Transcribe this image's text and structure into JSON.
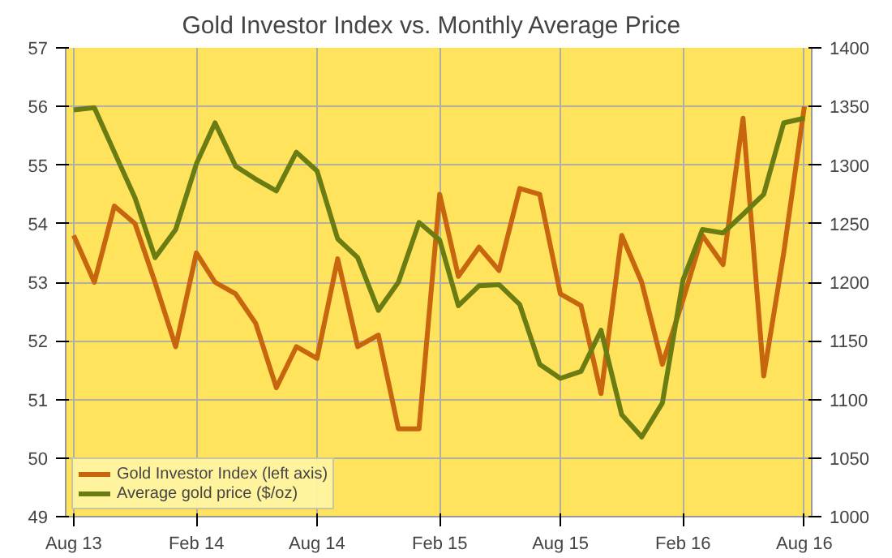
{
  "chart_data": {
    "type": "line",
    "title": "Gold Investor  Index vs. Monthly  Average Price",
    "x": [
      "2013-08",
      "2013-09",
      "2013-10",
      "2013-11",
      "2013-12",
      "2014-01",
      "2014-02",
      "2014-03",
      "2014-04",
      "2014-05",
      "2014-06",
      "2014-07",
      "2014-08",
      "2014-09",
      "2014-10",
      "2014-11",
      "2014-12",
      "2015-01",
      "2015-02",
      "2015-03",
      "2015-04",
      "2015-05",
      "2015-06",
      "2015-07",
      "2015-08",
      "2015-09",
      "2015-10",
      "2015-11",
      "2015-12",
      "2016-01",
      "2016-02",
      "2016-03",
      "2016-04",
      "2016-05",
      "2016-06",
      "2016-07",
      "2016-08"
    ],
    "series": [
      {
        "name": "Gold Investor Index (left axis)",
        "color": "#c8650f",
        "values": [
          53.8,
          53.0,
          54.3,
          54.0,
          53.0,
          51.9,
          53.5,
          53.0,
          52.8,
          52.3,
          51.2,
          51.9,
          51.7,
          53.4,
          51.9,
          52.1,
          50.5,
          50.5,
          54.5,
          53.1,
          53.6,
          53.2,
          54.6,
          54.5,
          52.8,
          52.6,
          51.1,
          53.8,
          53.0,
          51.6,
          52.7,
          53.8,
          53.3,
          55.8,
          51.4,
          53.5,
          56.0
        ]
      },
      {
        "name": "Average gold price ($/oz)",
        "color": "#6b7d12",
        "axis": "y2",
        "values": [
          1347,
          1349,
          1311,
          1272,
          1221,
          1245,
          1301,
          1336,
          1299,
          1288,
          1278,
          1311,
          1295,
          1237,
          1221,
          1176,
          1200,
          1251,
          1236,
          1180,
          1197,
          1198,
          1181,
          1130,
          1118,
          1124,
          1159,
          1087,
          1068,
          1097,
          1202,
          1245,
          1242,
          1258,
          1275,
          1336,
          1340
        ]
      }
    ],
    "xlim": [
      "2013-07-20",
      "2016-08-12"
    ],
    "xticks": [
      {
        "value": "2013-08",
        "label": "Aug 13"
      },
      {
        "value": "2014-02",
        "label": "Feb 14"
      },
      {
        "value": "2014-08",
        "label": "Aug 14"
      },
      {
        "value": "2015-02",
        "label": "Feb 15"
      },
      {
        "value": "2015-08",
        "label": "Aug 15"
      },
      {
        "value": "2016-02",
        "label": "Feb 16"
      },
      {
        "value": "2016-08",
        "label": "Aug 16"
      }
    ],
    "ylim": [
      49,
      57
    ],
    "yticks": [
      49,
      50,
      51,
      52,
      53,
      54,
      55,
      56,
      57
    ],
    "y2lim": [
      1000,
      1400
    ],
    "y2ticks": [
      1000,
      1050,
      1100,
      1150,
      1200,
      1250,
      1300,
      1350,
      1400
    ],
    "grid": true,
    "legend": "bottom left",
    "line_style": "solid"
  }
}
